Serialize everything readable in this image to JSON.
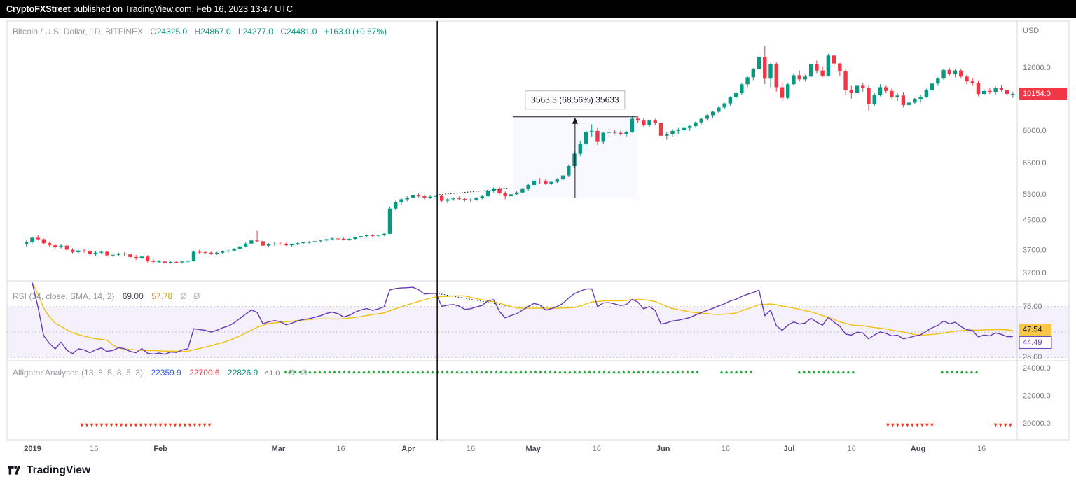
{
  "topbar": {
    "user": "CryptoFXStreet",
    "rest": " published on TradingView.com, Feb 16, 2023 13:47 UTC"
  },
  "footer": {
    "brand": "TradingView"
  },
  "price_pane": {
    "legend": {
      "symbol": "Bitcoin / U.S. Dollar, 1D, BITFINEX",
      "ohlc": [
        {
          "k": "O",
          "v": "24325.0"
        },
        {
          "k": "H",
          "v": "24867.0"
        },
        {
          "k": "L",
          "v": "24277.0"
        },
        {
          "k": "C",
          "v": "24481.0"
        }
      ],
      "change": "+163.0 (+0.67%)"
    },
    "axis_unit": "USD",
    "ticks": [
      {
        "t": "12000.0",
        "v": 12000
      },
      {
        "t": "8000.0",
        "v": 8000
      },
      {
        "t": "6500.0",
        "v": 6500
      },
      {
        "t": "5300.0",
        "v": 5300
      },
      {
        "t": "4500.0",
        "v": 4500
      },
      {
        "t": "3700.0",
        "v": 3700
      },
      {
        "t": "3200.0",
        "v": 3200
      }
    ],
    "last_badge": {
      "t": "10154.0",
      "v": 10154,
      "bg": "#f23645"
    }
  },
  "rsi_pane": {
    "legend": {
      "title": "RSI (14, close, SMA, 14, 2)",
      "v1": "69.00",
      "v2": "57.78",
      "extra": "Ø Ø"
    },
    "ticks": [
      {
        "t": "75.00",
        "v": 75
      },
      {
        "t": "25.00",
        "v": 25
      }
    ],
    "badges": [
      {
        "t": "47.54",
        "v": 47.54,
        "style": "yellow"
      },
      {
        "t": "44.49",
        "v": 44.49,
        "style": "purple"
      }
    ]
  },
  "alligator_pane": {
    "legend": {
      "title": "Alligator Analyses (13, 8, 5, 8, 5, 3)",
      "v1": "22359.9",
      "v2": "22700.6",
      "v3": "22826.9",
      "extra1": "˄1.0",
      "extra2": "Ø Ø"
    },
    "ticks": [
      {
        "t": "24000.0",
        "v": 24000
      },
      {
        "t": "22000.0",
        "v": 22000
      },
      {
        "t": "20000.0",
        "v": 20000
      }
    ]
  },
  "x_axis": [
    {
      "t": "2019",
      "f": 0.024,
      "maj": true
    },
    {
      "t": "16",
      "f": 0.085
    },
    {
      "t": "Feb",
      "f": 0.151,
      "maj": true
    },
    {
      "t": "Mar",
      "f": 0.268,
      "maj": true
    },
    {
      "t": "16",
      "f": 0.33
    },
    {
      "t": "Apr",
      "f": 0.397,
      "maj": true
    },
    {
      "t": "16",
      "f": 0.459
    },
    {
      "t": "May",
      "f": 0.521,
      "maj": true
    },
    {
      "t": "16",
      "f": 0.584
    },
    {
      "t": "Jun",
      "f": 0.65,
      "maj": true
    },
    {
      "t": "16",
      "f": 0.712
    },
    {
      "t": "Jul",
      "f": 0.775,
      "maj": true
    },
    {
      "t": "16",
      "f": 0.837
    },
    {
      "t": "Aug",
      "f": 0.903,
      "maj": true
    },
    {
      "t": "16",
      "f": 0.966
    }
  ],
  "chart_data": [
    {
      "type": "candlestick",
      "title": "Bitcoin / U.S. Dollar, 1D, BITFINEX",
      "y_scale": "log",
      "ylim": [
        3100,
        14500
      ],
      "up_color": "#089981",
      "down_color": "#f23645",
      "ohlc": [
        [
          3850,
          3950,
          3800,
          3900
        ],
        [
          3900,
          4050,
          3870,
          4020
        ],
        [
          4020,
          4080,
          3950,
          3980
        ],
        [
          3980,
          4000,
          3850,
          3880
        ],
        [
          3880,
          3920,
          3800,
          3830
        ],
        [
          3830,
          3870,
          3740,
          3780
        ],
        [
          3780,
          3850,
          3750,
          3820
        ],
        [
          3820,
          3860,
          3700,
          3720
        ],
        [
          3720,
          3760,
          3630,
          3660
        ],
        [
          3660,
          3720,
          3620,
          3700
        ],
        [
          3700,
          3740,
          3650,
          3680
        ],
        [
          3680,
          3700,
          3590,
          3620
        ],
        [
          3620,
          3680,
          3580,
          3650
        ],
        [
          3650,
          3700,
          3620,
          3670
        ],
        [
          3670,
          3690,
          3560,
          3590
        ],
        [
          3590,
          3640,
          3550,
          3600
        ],
        [
          3600,
          3650,
          3570,
          3630
        ],
        [
          3630,
          3660,
          3580,
          3610
        ],
        [
          3610,
          3630,
          3520,
          3550
        ],
        [
          3550,
          3600,
          3480,
          3520
        ],
        [
          3520,
          3580,
          3490,
          3560
        ],
        [
          3560,
          3590,
          3430,
          3460
        ],
        [
          3460,
          3500,
          3400,
          3440
        ],
        [
          3440,
          3480,
          3410,
          3450
        ],
        [
          3450,
          3470,
          3390,
          3420
        ],
        [
          3420,
          3460,
          3400,
          3440
        ],
        [
          3440,
          3470,
          3410,
          3430
        ],
        [
          3430,
          3460,
          3400,
          3450
        ],
        [
          3450,
          3480,
          3420,
          3460
        ],
        [
          3460,
          3700,
          3450,
          3670
        ],
        [
          3670,
          3720,
          3620,
          3660
        ],
        [
          3660,
          3690,
          3610,
          3650
        ],
        [
          3650,
          3680,
          3600,
          3630
        ],
        [
          3630,
          3670,
          3600,
          3650
        ],
        [
          3650,
          3700,
          3620,
          3680
        ],
        [
          3680,
          3720,
          3650,
          3700
        ],
        [
          3700,
          3760,
          3680,
          3740
        ],
        [
          3740,
          3820,
          3720,
          3800
        ],
        [
          3800,
          3900,
          3780,
          3870
        ],
        [
          3870,
          3980,
          3850,
          3950
        ],
        [
          3950,
          4200,
          3900,
          3930
        ],
        [
          3930,
          3960,
          3780,
          3820
        ],
        [
          3820,
          3880,
          3790,
          3850
        ],
        [
          3850,
          3900,
          3820,
          3870
        ],
        [
          3870,
          3910,
          3840,
          3860
        ],
        [
          3860,
          3890,
          3810,
          3830
        ],
        [
          3830,
          3870,
          3800,
          3850
        ],
        [
          3850,
          3900,
          3830,
          3880
        ],
        [
          3880,
          3920,
          3850,
          3900
        ],
        [
          3900,
          3940,
          3870,
          3910
        ],
        [
          3910,
          3950,
          3880,
          3930
        ],
        [
          3930,
          3970,
          3900,
          3950
        ],
        [
          3950,
          4000,
          3920,
          3980
        ],
        [
          3980,
          4030,
          3950,
          4000
        ],
        [
          4000,
          4040,
          3960,
          3990
        ],
        [
          3990,
          4020,
          3950,
          3970
        ],
        [
          3970,
          4010,
          3940,
          3990
        ],
        [
          3990,
          4050,
          3970,
          4030
        ],
        [
          4030,
          4080,
          4000,
          4060
        ],
        [
          4060,
          4100,
          4030,
          4080
        ],
        [
          4080,
          4110,
          4040,
          4070
        ],
        [
          4070,
          4100,
          4030,
          4090
        ],
        [
          4090,
          4150,
          4060,
          4120
        ],
        [
          4120,
          4900,
          4110,
          4850
        ],
        [
          4850,
          5100,
          4800,
          5050
        ],
        [
          5050,
          5200,
          4950,
          5150
        ],
        [
          5150,
          5250,
          5080,
          5200
        ],
        [
          5200,
          5320,
          5150,
          5280
        ],
        [
          5280,
          5350,
          5200,
          5250
        ],
        [
          5250,
          5300,
          5150,
          5200
        ],
        [
          5200,
          5280,
          5160,
          5240
        ],
        [
          5240,
          5300,
          5180,
          5260
        ],
        [
          5260,
          5290,
          5050,
          5100
        ],
        [
          5100,
          5180,
          5030,
          5150
        ],
        [
          5150,
          5220,
          5100,
          5180
        ],
        [
          5180,
          5250,
          5120,
          5160
        ],
        [
          5160,
          5200,
          5080,
          5120
        ],
        [
          5120,
          5180,
          5060,
          5140
        ],
        [
          5140,
          5230,
          5100,
          5200
        ],
        [
          5200,
          5280,
          5150,
          5250
        ],
        [
          5250,
          5480,
          5220,
          5450
        ],
        [
          5450,
          5560,
          5380,
          5500
        ],
        [
          5500,
          5580,
          5300,
          5350
        ],
        [
          5350,
          5420,
          5150,
          5250
        ],
        [
          5250,
          5350,
          5180,
          5320
        ],
        [
          5320,
          5420,
          5280,
          5380
        ],
        [
          5380,
          5550,
          5350,
          5500
        ],
        [
          5500,
          5700,
          5450,
          5650
        ],
        [
          5650,
          5850,
          5600,
          5800
        ],
        [
          5800,
          5900,
          5700,
          5780
        ],
        [
          5780,
          5850,
          5650,
          5700
        ],
        [
          5700,
          5800,
          5650,
          5760
        ],
        [
          5760,
          5900,
          5720,
          5850
        ],
        [
          5850,
          6100,
          5800,
          6000
        ],
        [
          6000,
          6450,
          5950,
          6380
        ],
        [
          6380,
          7000,
          6300,
          6900
        ],
        [
          6900,
          7500,
          6800,
          7350
        ],
        [
          7350,
          8050,
          7200,
          7950
        ],
        [
          7950,
          8350,
          7700,
          8000
        ],
        [
          8000,
          8150,
          7300,
          7450
        ],
        [
          7450,
          7950,
          7350,
          7900
        ],
        [
          7900,
          8100,
          7700,
          7950
        ],
        [
          7950,
          8050,
          7800,
          7900
        ],
        [
          7900,
          8000,
          7750,
          7850
        ],
        [
          7850,
          8000,
          7700,
          7950
        ],
        [
          7950,
          8750,
          7900,
          8650
        ],
        [
          8650,
          8800,
          8400,
          8550
        ],
        [
          8550,
          8700,
          8200,
          8300
        ],
        [
          8300,
          8600,
          8200,
          8550
        ],
        [
          8550,
          8650,
          8300,
          8400
        ],
        [
          8400,
          8500,
          7650,
          7750
        ],
        [
          7750,
          7950,
          7550,
          7850
        ],
        [
          7850,
          8100,
          7700,
          8000
        ],
        [
          8000,
          8150,
          7850,
          8050
        ],
        [
          8050,
          8250,
          7950,
          8150
        ],
        [
          8150,
          8300,
          8000,
          8250
        ],
        [
          8250,
          8500,
          8150,
          8450
        ],
        [
          8450,
          8700,
          8350,
          8650
        ],
        [
          8650,
          8900,
          8550,
          8850
        ],
        [
          8850,
          9100,
          8700,
          9050
        ],
        [
          9050,
          9350,
          8950,
          9300
        ],
        [
          9300,
          9600,
          9200,
          9550
        ],
        [
          9550,
          10000,
          9400,
          9950
        ],
        [
          9950,
          10250,
          9800,
          10200
        ],
        [
          10200,
          10900,
          10100,
          10800
        ],
        [
          10800,
          11400,
          10600,
          11300
        ],
        [
          11300,
          12000,
          11100,
          11900
        ],
        [
          11900,
          13000,
          11700,
          12900
        ],
        [
          12900,
          13850,
          10800,
          11200
        ],
        [
          11200,
          12400,
          10600,
          12300
        ],
        [
          12300,
          12450,
          10300,
          10600
        ],
        [
          10600,
          11000,
          9700,
          9900
        ],
        [
          9900,
          10900,
          9800,
          10800
        ],
        [
          10800,
          11600,
          10700,
          11450
        ],
        [
          11450,
          11800,
          11000,
          11150
        ],
        [
          11150,
          11500,
          11000,
          11350
        ],
        [
          11350,
          12400,
          11250,
          12300
        ],
        [
          12300,
          12600,
          11600,
          11800
        ],
        [
          11800,
          12100,
          11300,
          11400
        ],
        [
          11400,
          13150,
          11350,
          13000
        ],
        [
          13000,
          13100,
          12200,
          12350
        ],
        [
          12350,
          12400,
          11400,
          11750
        ],
        [
          11750,
          11900,
          10100,
          10400
        ],
        [
          10400,
          10700,
          9850,
          10200
        ],
        [
          10200,
          10850,
          9900,
          10700
        ],
        [
          10700,
          10900,
          10300,
          10550
        ],
        [
          10550,
          10750,
          9100,
          9500
        ],
        [
          9500,
          10200,
          9400,
          10100
        ],
        [
          10100,
          10800,
          10000,
          10600
        ],
        [
          10600,
          10700,
          10200,
          10350
        ],
        [
          10350,
          10500,
          9800,
          9950
        ],
        [
          9950,
          10200,
          9700,
          10050
        ],
        [
          10050,
          10250,
          9300,
          9450
        ],
        [
          9450,
          9700,
          9350,
          9600
        ],
        [
          9600,
          9900,
          9500,
          9800
        ],
        [
          9800,
          10100,
          9600,
          9950
        ],
        [
          9950,
          10500,
          9900,
          10400
        ],
        [
          10400,
          10950,
          10300,
          10850
        ],
        [
          10850,
          11300,
          10700,
          11200
        ],
        [
          11200,
          11950,
          11100,
          11850
        ],
        [
          11850,
          12000,
          11400,
          11550
        ],
        [
          11550,
          11900,
          11300,
          11800
        ],
        [
          11800,
          11950,
          11200,
          11350
        ],
        [
          11350,
          11500,
          10800,
          11000
        ],
        [
          11000,
          11250,
          10700,
          10900
        ],
        [
          10900,
          11050,
          10000,
          10150
        ],
        [
          10150,
          10450,
          10050,
          10350
        ],
        [
          10350,
          10550,
          10150,
          10250
        ],
        [
          10250,
          10650,
          10100,
          10550
        ],
        [
          10550,
          10750,
          10300,
          10400
        ],
        [
          10400,
          10500,
          10000,
          10150
        ],
        [
          10150,
          10300,
          9900,
          10154
        ]
      ]
    },
    {
      "type": "line",
      "title": "RSI (14, close, SMA, 14, 2)",
      "ylim": [
        20,
        100
      ],
      "band": [
        25,
        75
      ],
      "mid": 50,
      "series": [
        {
          "name": "RSI 14",
          "color": "#673ab7",
          "source": "RSI(14) of candle closes"
        },
        {
          "name": "SMA 14",
          "color": "#f0c113",
          "source": "SMA(14) of RSI"
        }
      ]
    },
    {
      "type": "scatter",
      "title": "Alligator Analyses signals",
      "ylim": [
        18800,
        24500
      ],
      "up_level": 23750,
      "down_level": 19900,
      "up_color": "#2f9e44",
      "down_color": "#ef3b2d",
      "up_clusters": [
        [
          0.275,
          0.685
        ],
        [
          0.708,
          0.74
        ],
        [
          0.785,
          0.84
        ],
        [
          0.927,
          0.965
        ]
      ],
      "down_clusters": [
        [
          0.073,
          0.2
        ],
        [
          0.873,
          0.921
        ],
        [
          0.98,
          0.998
        ]
      ]
    }
  ],
  "annotations": {
    "vline_f": 0.4257,
    "measure": {
      "f1": 0.5007,
      "f2": 0.6236,
      "arrow_f": 0.5625,
      "price_low": 5197,
      "price_high": 8760,
      "label": "3563.3 (68.56%) 35633"
    },
    "price_trend": {
      "x1f": 0.425,
      "p1": 5300,
      "x2f": 0.497,
      "p2": 5520
    },
    "rsi_trend": {
      "x1f": 0.427,
      "v1": 88,
      "x2f": 0.495,
      "v2": 76
    }
  }
}
